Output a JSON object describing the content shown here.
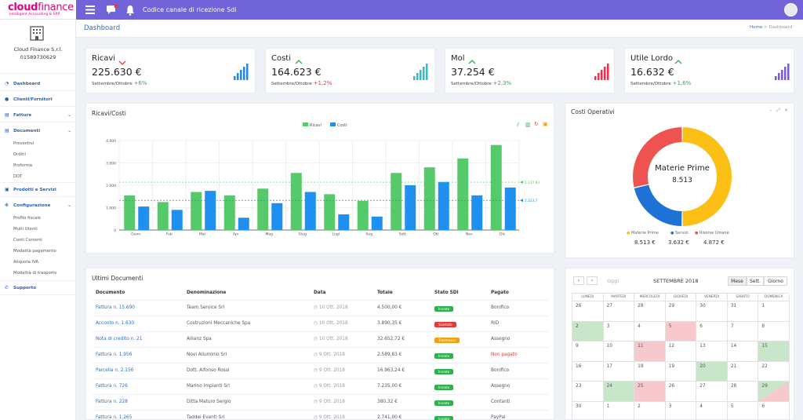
{
  "app": {
    "logo_text": "cloud",
    "logo_text2": "finance",
    "logo_tagline": "Intelligent Accounting & ERP",
    "top_title": "Codice canale di ricezione Sdi"
  },
  "company": {
    "name": "Cloud Finance S.r.l.",
    "vat": "01589730629"
  },
  "sidebar": {
    "items": [
      {
        "label": "Dashboard",
        "icon": "speedometer-icon"
      },
      {
        "label": "Clienti/Fornitori",
        "icon": "user-icon"
      },
      {
        "label": "Fatture",
        "icon": "document-icon"
      },
      {
        "label": "Documenti",
        "icon": "documents-icon"
      },
      {
        "label": "Prodotti e Servizi",
        "icon": "basket-icon"
      },
      {
        "label": "Configurazione",
        "icon": "gear-icon"
      },
      {
        "label": "Supporto",
        "icon": "phone-icon"
      }
    ],
    "documenti_sub": [
      "Preventivi",
      "Ordini",
      "Proforma",
      "DDT"
    ],
    "config_sub": [
      "Profilo fiscale",
      "Multi Utenti",
      "Conti Correnti",
      "Modalità pagamento",
      "Aliquota IVA",
      "Modalità di trasporto"
    ]
  },
  "page": {
    "title": "Dashboard",
    "breadcrumb_home": "Home",
    "breadcrumb_sep": ">",
    "breadcrumb_current": "Dashboard"
  },
  "kpis": [
    {
      "title": "Ricavi",
      "trend": "down",
      "value": "225.630 €",
      "period": "Settembre/Ottobre",
      "delta": "+6%",
      "delta_color": "#2bb24c",
      "bar_color": "#2a86e0"
    },
    {
      "title": "Costi",
      "trend": "up",
      "value": "164.623 €",
      "period": "Settembre/Ottobre",
      "delta": "+1,2%",
      "delta_color": "#e53935",
      "bar_color": "#26c0d3"
    },
    {
      "title": "Mol",
      "trend": "up",
      "value": "37.254 €",
      "period": "Settembre/Ottobre",
      "delta": "+2,3%",
      "delta_color": "#2bb24c",
      "bar_color": "#e8324e"
    },
    {
      "title": "Utile Lordo",
      "trend": "up",
      "value": "16.632 €",
      "period": "Settembre/Ottobre",
      "delta": "+1,6%",
      "delta_color": "#2bb24c",
      "bar_color": "#7a5bd6"
    }
  ],
  "ricavi_costi": {
    "title": "Ricavi/Costi",
    "chart_data": {
      "type": "bar",
      "categories": [
        "Genn",
        "Feb",
        "Mar",
        "Apr",
        "Mag",
        "Giug",
        "Lugl",
        "Aug",
        "Sett",
        "Ott",
        "Nov",
        "Dic"
      ],
      "series": [
        {
          "name": "Ricavi",
          "color": "#56c96a",
          "values": [
            1550,
            1250,
            1700,
            1550,
            1850,
            2550,
            1600,
            1300,
            2550,
            2800,
            3200,
            3800
          ]
        },
        {
          "name": "Costi",
          "color": "#1e90ef",
          "values": [
            1050,
            900,
            1750,
            550,
            1200,
            1700,
            700,
            600,
            2000,
            2150,
            1550,
            1900
          ]
        }
      ],
      "ylim": [
        0,
        4000
      ],
      "yticks": [
        "0",
        "1.000",
        "2.000",
        "3.000",
        "4.000"
      ],
      "grid": true,
      "legend": "top-center",
      "averages": [
        {
          "series": "Ricavi",
          "value": 2137.83,
          "label": "2.137,83"
        },
        {
          "series": "Costi",
          "value": 1323.7,
          "label": "1.323,7"
        }
      ]
    }
  },
  "costi_operativi": {
    "title": "Costi Operativi",
    "center_label": "Materie Prime",
    "center_value": "8.513",
    "chart_data": {
      "type": "pie",
      "labels": [
        "Materie Prime",
        "Servizi",
        "Risorse Umane"
      ],
      "values": [
        8513,
        3632,
        4872
      ],
      "colors": [
        "#fbbf16",
        "#1e72d6",
        "#ef5350"
      ],
      "value_labels": [
        "8.513 €",
        "3.632 €",
        "4.872 €"
      ],
      "legend": "bottom"
    }
  },
  "ultimi_documenti": {
    "title": "Ultimi Documenti",
    "headers": [
      "Documento",
      "Denominazione",
      "Data",
      "Totale",
      "Stato SDi",
      "Pagato"
    ],
    "rows": [
      {
        "doc": "Fattura n. 15.690",
        "name": "Team Service Srl",
        "date": "10 Ott. 2018",
        "total": "4.500,00 €",
        "status": "Inviato",
        "status_color": "#2bb24c",
        "paid": "Bonifico",
        "paid_color": "#555"
      },
      {
        "doc": "Acconto n. 1.630",
        "name": "Costruzioni Meccaniche Spa",
        "date": "10 Ott. 2018",
        "total": "3.890,35 €",
        "status": "Scartato",
        "status_color": "#e53935",
        "paid": "RID",
        "paid_color": "#555"
      },
      {
        "doc": "Nota di credito n. 21",
        "name": "Allianz Spa",
        "date": "10 Ott. 2018",
        "total": "32.652,72 €",
        "status": "Trasmesso",
        "status_color": "#f0a30a",
        "paid": "Assegno",
        "paid_color": "#555"
      },
      {
        "doc": "Fattura n. 1.956",
        "name": "Novi Alluminio Srl",
        "date": "9 Ott. 2018",
        "total": "2.589,83 €",
        "status": "Inviato",
        "status_color": "#2bb24c",
        "paid": "Non pagato",
        "paid_color": "#e53935"
      },
      {
        "doc": "Parcella n. 2.156",
        "name": "Dott. Alfonso Rossi",
        "date": "9 Ott. 2018",
        "total": "16.963,24 €",
        "status": "Inviato",
        "status_color": "#2bb24c",
        "paid": "Bonifico",
        "paid_color": "#555"
      },
      {
        "doc": "Fattura n. 726",
        "name": "Marino Impianti Srl",
        "date": "9 Ott. 2018",
        "total": "7.235,00 €",
        "status": "Inviato",
        "status_color": "#2bb24c",
        "paid": "Assegno",
        "paid_color": "#555"
      },
      {
        "doc": "Fattura n. 228",
        "name": "Ditta Maturo Sergio",
        "date": "9 Ott. 2018",
        "total": "380,32 €",
        "status": "Inviato",
        "status_color": "#2bb24c",
        "paid": "Contanti",
        "paid_color": "#555"
      },
      {
        "doc": "Fattura n. 1.265",
        "name": "Taddei Eventi Srl",
        "date": "9 Ott. 2018",
        "total": "2.741,00 €",
        "status": "Inviato",
        "status_color": "#2bb24c",
        "paid": "PayPal",
        "paid_color": "#555"
      }
    ]
  },
  "calendar": {
    "today_label": "Oggi",
    "month_label": "SETTEMBRE 2018",
    "views": [
      "Mese",
      "Sett.",
      "Giorno"
    ],
    "weekdays": [
      "LUNEDI",
      "MARTEDI",
      "MERCOLEDI",
      "GIOVEDI",
      "VENERDI",
      "SABATO",
      "DOMENICA"
    ],
    "weeks": [
      [
        "26",
        "27",
        "28",
        "29",
        "30",
        "31",
        "1"
      ],
      [
        "2",
        "3",
        "4",
        "5",
        "6",
        "7",
        "8"
      ],
      [
        "9",
        "10",
        "11",
        "12",
        "13",
        "14",
        "15"
      ],
      [
        "16",
        "17",
        "18",
        "19",
        "20",
        "21",
        "22"
      ],
      [
        "23",
        "24",
        "25",
        "26",
        "27",
        "28",
        "29"
      ],
      [
        "30",
        "1",
        "2",
        "3",
        "4",
        "5",
        "6"
      ]
    ],
    "highlights": [
      {
        "week": 1,
        "day": 0,
        "color": "#c8e6c9"
      },
      {
        "week": 1,
        "day": 3,
        "color": "#f8c9cc"
      },
      {
        "week": 2,
        "day": 2,
        "color": "#f8c9cc"
      },
      {
        "week": 2,
        "day": 6,
        "color": "#c8e6c9"
      },
      {
        "week": 3,
        "day": 4,
        "color": "#c8e6c9"
      },
      {
        "week": 4,
        "day": 1,
        "color": "#c8e6c9"
      },
      {
        "week": 4,
        "day": 2,
        "color": "#f8c9cc"
      },
      {
        "week": 4,
        "day": 6,
        "color": "split"
      }
    ]
  }
}
